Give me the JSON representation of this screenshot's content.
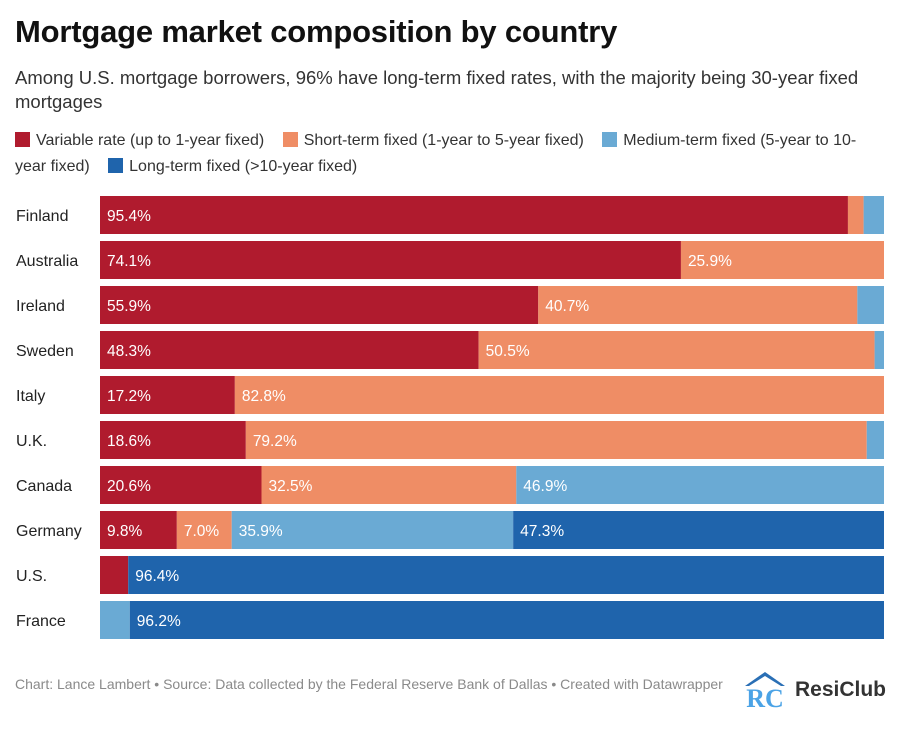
{
  "title": "Mortgage market composition by country",
  "subtitle": "Among U.S. mortgage borrowers, 96% have long-term fixed rates, with the majority being 30-year fixed mortgages",
  "footer": {
    "text": "Chart: Lance Lambert • Source: Data collected by the Federal Reserve Bank of Dallas • Created with Datawrapper"
  },
  "brand": {
    "name": "ResiClub",
    "logo_letters": "RC"
  },
  "colors": {
    "variable": "#b01b2e",
    "short": "#ef8d65",
    "medium": "#6aaad4",
    "long": "#1f64ac",
    "label_text": "#ffffff",
    "logo_accent": "#4ba3e6",
    "logo_dark": "#2a6fb5"
  },
  "chart_data": {
    "type": "bar",
    "orientation": "horizontal",
    "stacked": true,
    "xlim": [
      0,
      100
    ],
    "legend_position": "top",
    "categories": [
      "Finland",
      "Australia",
      "Ireland",
      "Sweden",
      "Italy",
      "U.K.",
      "Canada",
      "Germany",
      "U.S.",
      "France"
    ],
    "series": [
      {
        "name": "Variable rate (up to 1-year fixed)",
        "key": "variable",
        "values": [
          95.4,
          74.1,
          55.9,
          48.3,
          17.2,
          18.6,
          20.6,
          9.8,
          3.6,
          0
        ],
        "labels": [
          "95.4%",
          "74.1%",
          "55.9%",
          "48.3%",
          "17.2%",
          "18.6%",
          "20.6%",
          "9.8%",
          "",
          ""
        ]
      },
      {
        "name": "Short-term fixed (1-year to 5-year fixed)",
        "key": "short",
        "values": [
          2.0,
          25.9,
          40.7,
          50.5,
          82.8,
          79.2,
          32.5,
          7.0,
          0,
          0
        ],
        "labels": [
          "",
          "25.9%",
          "40.7%",
          "50.5%",
          "82.8%",
          "79.2%",
          "32.5%",
          "7.0%",
          "",
          ""
        ]
      },
      {
        "name": "Medium-term fixed (5-year to 10-year fixed)",
        "key": "medium",
        "values": [
          2.6,
          0,
          3.4,
          1.2,
          0,
          2.2,
          46.9,
          35.9,
          0,
          3.8
        ],
        "labels": [
          "",
          "",
          "",
          "",
          "",
          "",
          "46.9%",
          "35.9%",
          "",
          ""
        ]
      },
      {
        "name": "Long-term fixed (>10-year fixed)",
        "key": "long",
        "values": [
          0,
          0,
          0,
          0,
          0,
          0,
          0,
          47.3,
          96.4,
          96.2
        ],
        "labels": [
          "",
          "",
          "",
          "",
          "",
          "",
          "",
          "47.3%",
          "96.4%",
          "96.2%"
        ]
      }
    ]
  }
}
